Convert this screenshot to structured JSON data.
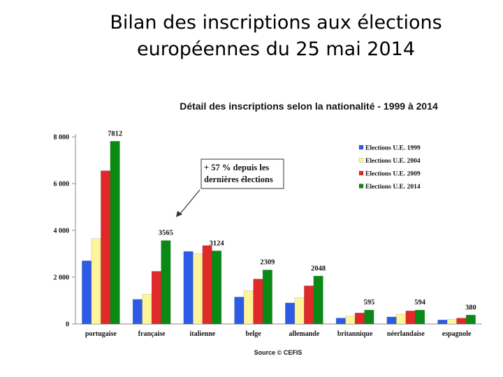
{
  "slide": {
    "title_line1": "Bilan des inscriptions aux élections",
    "title_line2": "européennes du 25 mai 2014"
  },
  "chart_data": {
    "type": "bar",
    "title": "Détail des inscriptions selon la nationalité - 1999 à 2014",
    "categories": [
      "portugaise",
      "française",
      "italienne",
      "belge",
      "allemande",
      "britannique",
      "néerlandaise",
      "espagnole"
    ],
    "series": [
      {
        "name": "Elections U.E. 1999",
        "color": "#2e5be6",
        "values": [
          2700,
          1050,
          3100,
          1150,
          900,
          250,
          300,
          170
        ]
      },
      {
        "name": "Elections U.E. 2004",
        "color": "#fef59a",
        "values": [
          3650,
          1270,
          3000,
          1420,
          1120,
          330,
          420,
          200
        ]
      },
      {
        "name": "Elections U.E. 2009",
        "color": "#e02a2a",
        "values": [
          6550,
          2250,
          3350,
          1920,
          1630,
          470,
          560,
          250
        ]
      },
      {
        "name": "Elections U.E. 2014",
        "color": "#0a8a14",
        "values": [
          7812,
          3565,
          3124,
          2309,
          2048,
          595,
          594,
          380
        ]
      }
    ],
    "data_labels": [
      "7812",
      "3565",
      "3124",
      "2309",
      "2048",
      "595",
      "594",
      "380"
    ],
    "yticks": [
      0,
      2000,
      4000,
      6000,
      8000
    ],
    "ytick_labels": [
      "0",
      "2 000",
      "4 000",
      "6 000",
      "8 000"
    ],
    "ylim": [
      0,
      8000
    ],
    "legend_position": "top-right",
    "annotation_line1": "+ 57 % depuis les",
    "annotation_line2": "dernières élections",
    "source": "Source © CEFIS"
  }
}
